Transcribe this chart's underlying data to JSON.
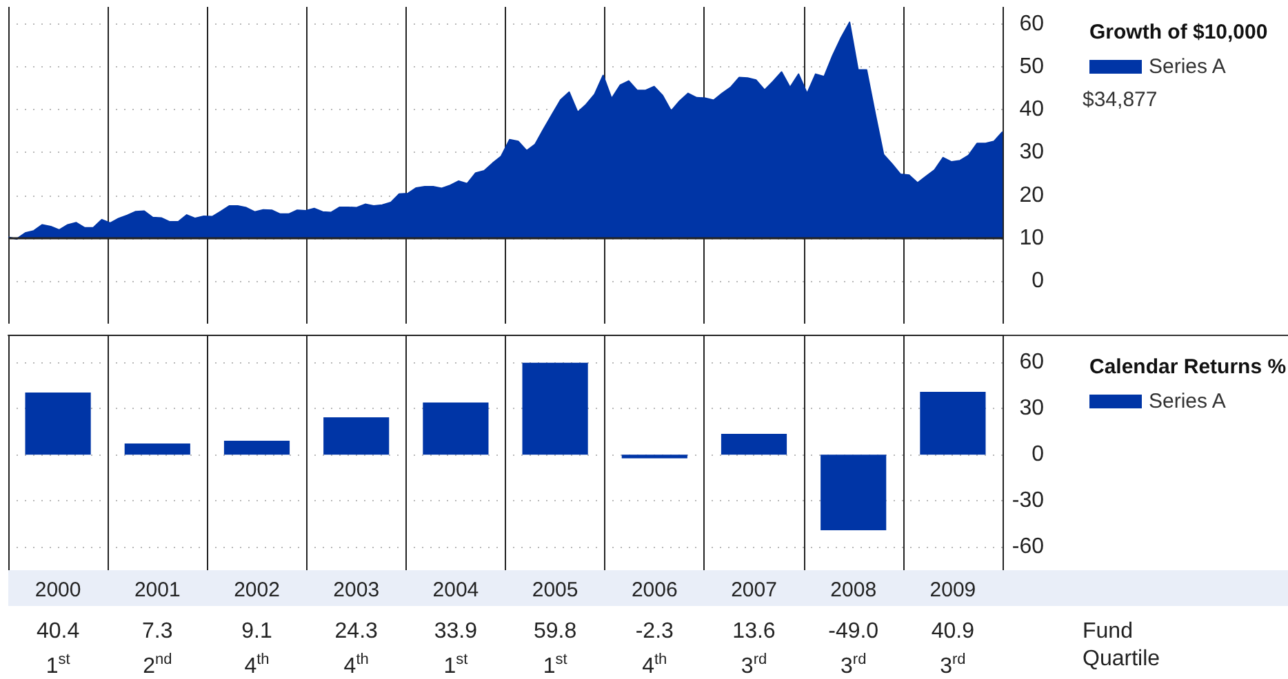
{
  "chart_data": [
    {
      "type": "area",
      "legend_title": "Growth of $10,000",
      "annotations": [
        "$34,877"
      ],
      "legend": "right",
      "grid": true,
      "categories": [
        null,
        null,
        null,
        null,
        null,
        null,
        null,
        null,
        null,
        null,
        null,
        null,
        null,
        null,
        null,
        null,
        null,
        null,
        null,
        null,
        null,
        null,
        null,
        null,
        null,
        null,
        null,
        null,
        null,
        null,
        null,
        null,
        null,
        null,
        null,
        null,
        null,
        null,
        null,
        null,
        null,
        null,
        null,
        null,
        null,
        null,
        null,
        null,
        null,
        null,
        null,
        null,
        null,
        null,
        null,
        null,
        null,
        null,
        null,
        null,
        null,
        null,
        null,
        null,
        null,
        null,
        null,
        null,
        null,
        null,
        null,
        null,
        null,
        null,
        null,
        null,
        null,
        null,
        null,
        null,
        null,
        null,
        null,
        null,
        null,
        null,
        null,
        null,
        null,
        null,
        null,
        null,
        null,
        null,
        null,
        null,
        null,
        null,
        null,
        null,
        null,
        null,
        null,
        null,
        null,
        null,
        null,
        null,
        null,
        null,
        null,
        null,
        null,
        null,
        null,
        null,
        null,
        null
      ],
      "series": [
        {
          "name": "Series A",
          "color": "#0035a6",
          "values": [
            10.2,
            9.8,
            11.2,
            11.7,
            13.1,
            12.7,
            11.9,
            13.1,
            13.6,
            12.4,
            12.4,
            14.3,
            13.5,
            14.6,
            15.3,
            16.2,
            16.3,
            14.8,
            14.7,
            13.8,
            13.8,
            15.4,
            14.6,
            15.1,
            15.0,
            16.2,
            17.5,
            17.5,
            17.1,
            16.1,
            16.6,
            16.5,
            15.6,
            15.6,
            16.5,
            16.4,
            16.9,
            16.1,
            16.0,
            17.2,
            17.2,
            17.1,
            17.9,
            17.5,
            17.7,
            18.3,
            20.3,
            20.4,
            21.7,
            22.0,
            22.0,
            21.6,
            22.3,
            23.3,
            22.7,
            25.2,
            25.7,
            27.5,
            29.1,
            33.0,
            32.6,
            30.4,
            31.9,
            35.5,
            38.9,
            42.3,
            44.1,
            39.4,
            41.2,
            43.6,
            48.0,
            42.6,
            45.7,
            46.7,
            44.5,
            44.5,
            45.4,
            43.3,
            39.7,
            42.0,
            43.8,
            42.8,
            42.7,
            42.2,
            43.8,
            45.2,
            47.5,
            47.4,
            46.9,
            44.6,
            46.6,
            48.8,
            45.2,
            48.3,
            43.8,
            48.3,
            47.7,
            52.6,
            56.8,
            60.4,
            49.3,
            49.3,
            39.2,
            29.5,
            27.3,
            24.9,
            24.7,
            22.9,
            24.4,
            25.9,
            28.8,
            27.8,
            28.1,
            29.3,
            32.1,
            32.1,
            32.6,
            34.8
          ]
        }
      ],
      "ylim": [
        -10,
        64
      ],
      "yticks": [
        0,
        10,
        20,
        30,
        40,
        50,
        60
      ],
      "ref_lines": [
        {
          "axis": "y",
          "value": 10,
          "color": "#222222"
        }
      ]
    },
    {
      "type": "bar",
      "legend_title": "Calendar Returns %",
      "legend": "right",
      "grid": true,
      "categories": [
        "2000",
        "2001",
        "2002",
        "2003",
        "2004",
        "2005",
        "2006",
        "2007",
        "2008",
        "2009"
      ],
      "series": [
        {
          "name": "Series A",
          "color": "#0035a6",
          "values": [
            40.4,
            7.3,
            9.1,
            24.3,
            33.9,
            59.8,
            -2.3,
            13.6,
            -49.0,
            40.9
          ],
          "value_labels": [
            "40.4",
            "7.3",
            "9.1",
            "24.3",
            "33.9",
            "59.8",
            "-2.3",
            "13.6",
            "-49.0",
            "40.9"
          ]
        }
      ],
      "ylim": [
        -75,
        78
      ],
      "yticks": [
        -60,
        -30,
        0,
        30,
        60
      ],
      "annotations": [
        "Fund",
        "Quartile",
        "1$^{st}$",
        "2$^{nd}$",
        "4$^{th}$",
        "4$^{th}$",
        "1$^{st}$",
        "1$^{st}$",
        "4$^{th}$",
        "3$^{rd}$",
        "3$^{rd}$",
        "3$^{rd}$"
      ]
    }
  ]
}
